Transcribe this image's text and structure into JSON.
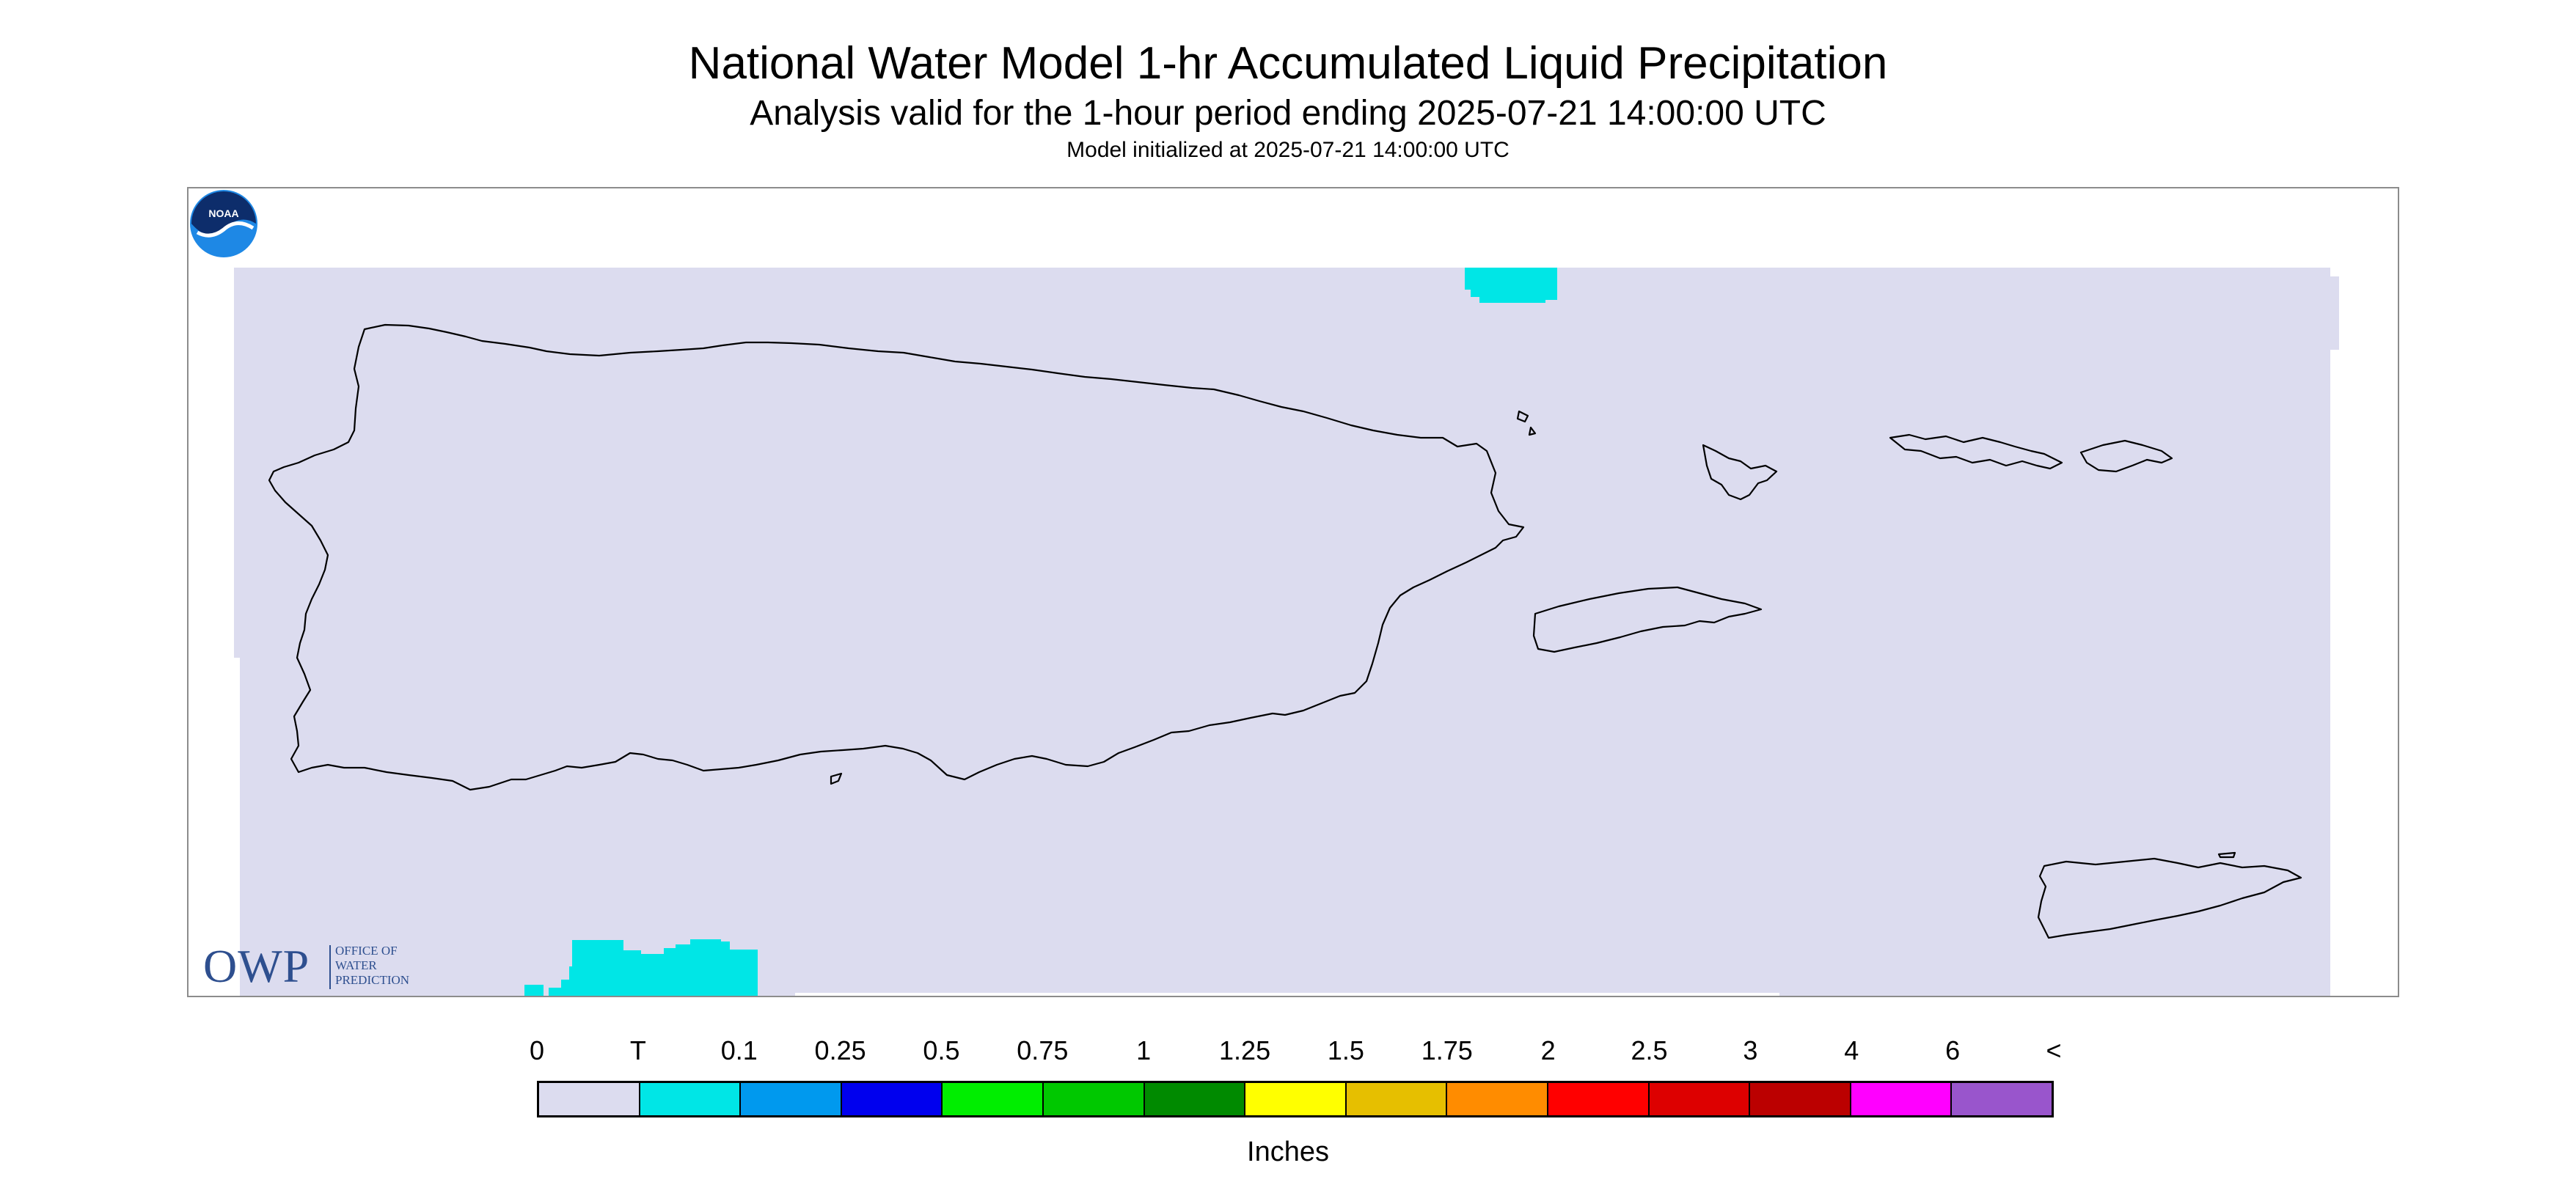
{
  "title": "National Water Model 1-hr Accumulated Liquid Precipitation",
  "subtitle": "Analysis valid for the 1-hour period ending 2025-07-21 14:00:00 UTC",
  "initialized": "Model initialized at 2025-07-21 14:00:00 UTC",
  "logos": {
    "owp_main": "OWP",
    "owp_sub": "OFFICE OF\nWATER\nPREDICTION",
    "noaa": "NOAA"
  },
  "map": {
    "domain_fill_color": "#dcdcef",
    "coastline_color": "#000000",
    "precip_cells": [
      {
        "location": "north of Vieques Passage, top edge",
        "category": "T"
      },
      {
        "location": "south-west, bottom edge",
        "category": "T"
      }
    ]
  },
  "legend": {
    "units": "Inches",
    "labels": [
      "0",
      "T",
      "0.1",
      "0.25",
      "0.5",
      "0.75",
      "1",
      "1.25",
      "1.5",
      "1.75",
      "2",
      "2.5",
      "3",
      "4",
      "6",
      "<"
    ],
    "colors": [
      "#dcdcef",
      "#00e6e6",
      "#0099ee",
      "#0000ee",
      "#00ee00",
      "#00c800",
      "#008a00",
      "#ffff00",
      "#e6bf00",
      "#ff8c00",
      "#ff0000",
      "#dd0000",
      "#bb0000",
      "#ff00ff",
      "#9955cc"
    ]
  }
}
